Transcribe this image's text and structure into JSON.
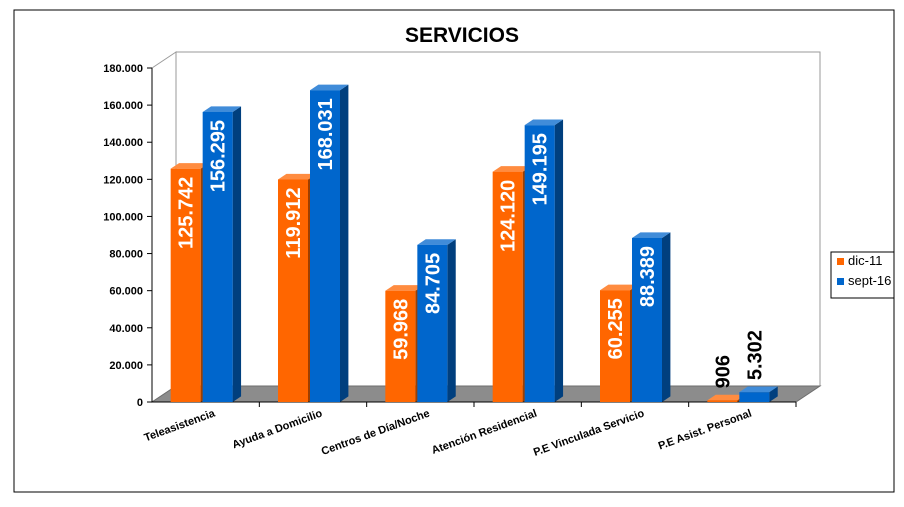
{
  "chart_data": {
    "type": "bar",
    "title": "SERVICIOS",
    "xlabel": "",
    "ylabel": "",
    "ylim": [
      0,
      180000
    ],
    "yticks": [
      0,
      20000,
      40000,
      60000,
      80000,
      100000,
      120000,
      140000,
      160000,
      180000
    ],
    "ytick_labels": [
      "0",
      "20.000",
      "40.000",
      "60.000",
      "80.000",
      "100.000",
      "120.000",
      "140.000",
      "160.000",
      "180.000"
    ],
    "categories": [
      "Teleasistencia",
      "Ayuda a Domicilio",
      "Centros de Día/Noche",
      "Atención Residencial",
      "P.E Vinculada Servicio",
      "P.E Asist. Personal"
    ],
    "series": [
      {
        "name": "dic-11",
        "color": "#ff6600",
        "values": [
          125742,
          119912,
          59968,
          124120,
          60255,
          906
        ],
        "labels": [
          "125.742",
          "119.912",
          "59.968",
          "124.120",
          "60.255",
          "906"
        ]
      },
      {
        "name": "sept-16",
        "color": "#0066cc",
        "values": [
          156295,
          168031,
          84705,
          149195,
          88389,
          5302
        ],
        "labels": [
          "156.295",
          "168.031",
          "84.705",
          "149.195",
          "88.389",
          "5.302"
        ]
      }
    ],
    "legend_position": "right",
    "grid": false
  }
}
